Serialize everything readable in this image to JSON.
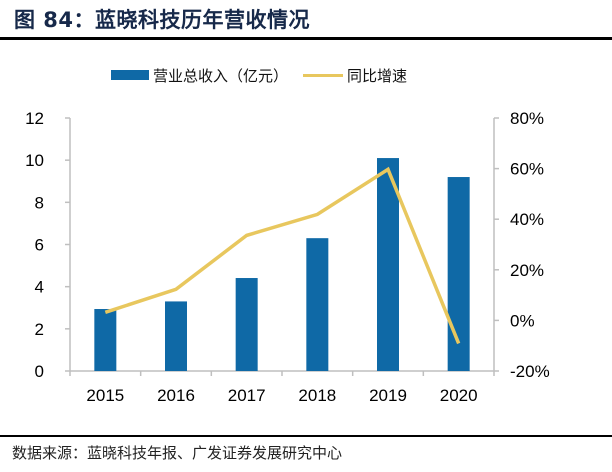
{
  "title": "图 84：蓝晓科技历年营收情况",
  "source": "数据来源：蓝晓科技年报、广发证券发展研究中心",
  "legend": {
    "bar_label": "营业总收入（亿元）",
    "line_label": "同比增速"
  },
  "colors": {
    "bar": "#0f69a6",
    "line": "#e8c75e",
    "axis": "#bfbfbf",
    "title": "#17294a"
  },
  "chart_data": {
    "type": "bar",
    "title": "蓝晓科技历年营收情况",
    "categories": [
      "2015",
      "2016",
      "2017",
      "2018",
      "2019",
      "2020"
    ],
    "series": [
      {
        "name": "营业总收入（亿元）",
        "type": "bar",
        "axis": "left",
        "values": [
          2.94,
          3.3,
          4.41,
          6.3,
          10.1,
          9.2
        ]
      },
      {
        "name": "同比增速",
        "type": "line",
        "axis": "right",
        "values": [
          3.2,
          12.3,
          33.6,
          41.9,
          59.7,
          -9.1
        ]
      }
    ],
    "left_axis": {
      "min": 0,
      "max": 12,
      "ticks": [
        0,
        2,
        4,
        6,
        8,
        10,
        12
      ],
      "tick_labels": [
        "0",
        "2",
        "4",
        "6",
        "8",
        "10",
        "12"
      ]
    },
    "right_axis": {
      "min": -20,
      "max": 80,
      "ticks": [
        -20,
        0,
        20,
        40,
        60,
        80
      ],
      "tick_labels": [
        "-20%",
        "0%",
        "20%",
        "40%",
        "60%",
        "80%"
      ],
      "unit": "%"
    },
    "xlabel": "",
    "ylabel": "",
    "grid": false,
    "legend_position": "top-center"
  }
}
